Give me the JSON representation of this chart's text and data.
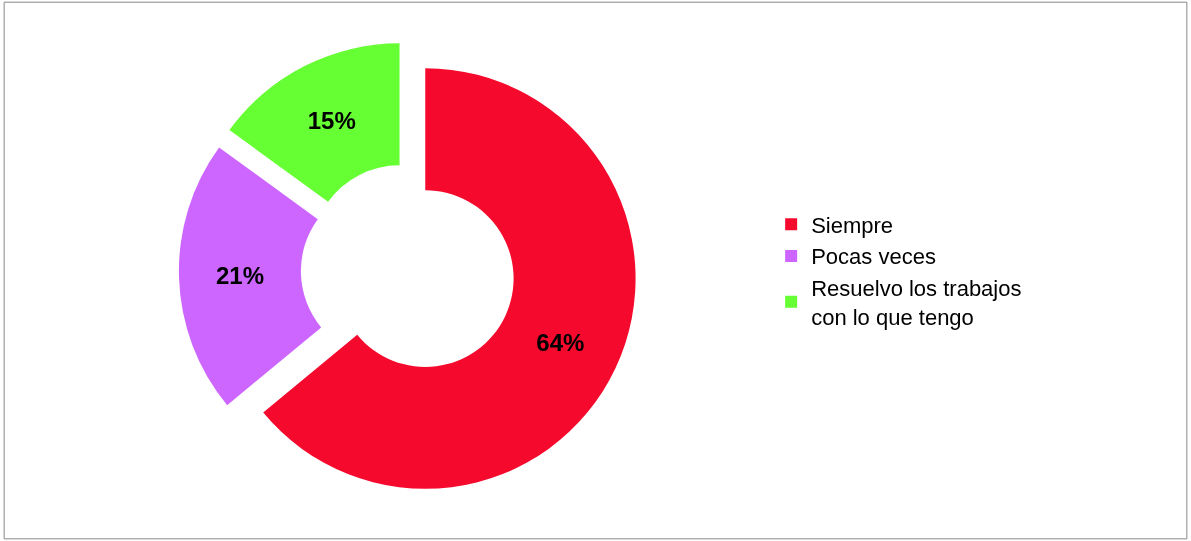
{
  "chart_data": {
    "type": "donut",
    "categories": [
      "Siempre",
      "Pocas veces",
      "Resuelvo los trabajos con lo que tengo"
    ],
    "values": [
      64,
      21,
      15
    ],
    "colors": [
      "#f50a2e",
      "#cc66ff",
      "#66ff33"
    ],
    "value_labels": [
      "64%",
      "21%",
      "15%"
    ],
    "legend": "right"
  }
}
